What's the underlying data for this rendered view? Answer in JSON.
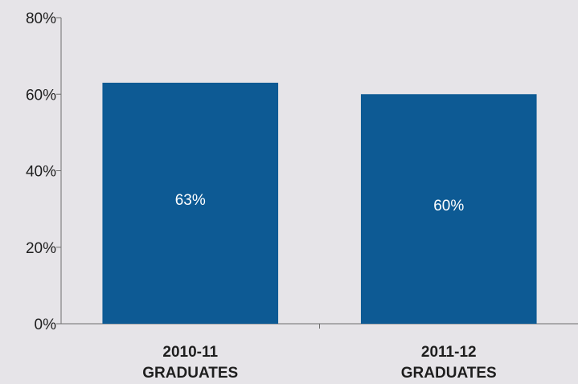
{
  "chart_data": {
    "type": "bar",
    "categories": [
      [
        "2010-11",
        "GRADUATES"
      ],
      [
        "2011-12",
        "GRADUATES"
      ]
    ],
    "values": [
      63,
      60
    ],
    "data_labels": [
      "63%",
      "60%"
    ],
    "ylim": [
      0,
      80
    ],
    "yticks": [
      0,
      20,
      40,
      60,
      80
    ],
    "ytick_labels": [
      "0%",
      "20%",
      "40%",
      "60%",
      "80%"
    ],
    "bar_color": "#0d5a94",
    "grid": false,
    "legend": "none"
  }
}
